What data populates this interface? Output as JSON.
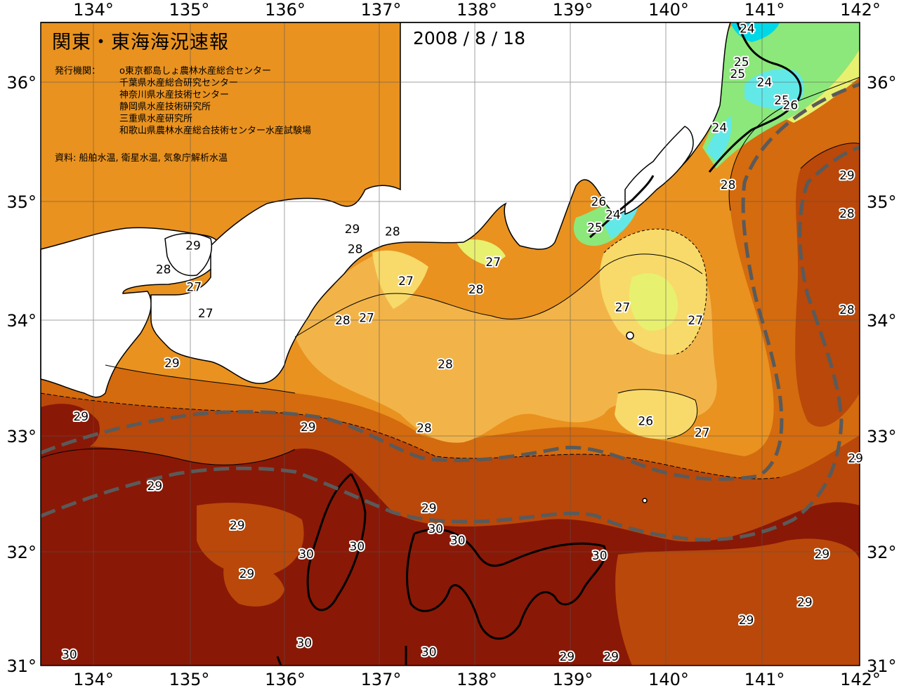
{
  "header": {
    "title": "関東・東海海況速報",
    "date": "2008 / 8 / 18",
    "issuer_label": "発行機関：",
    "issuers": [
      "o東京都島しょ農林水産総合センター",
      "千葉県水産総合研究センター",
      "神奈川県水産技術センター",
      "静岡県水産技術研究所",
      "三重県水産研究所",
      "和歌山県農林水産総合技術センター水産試験場"
    ],
    "source": "資料: 船舶水温, 衛星水温, 気象庁解析水温"
  },
  "axes": {
    "lon_labels": [
      "134°",
      "135°",
      "136°",
      "137°",
      "138°",
      "139°",
      "140°",
      "141°",
      "142°"
    ],
    "lat_labels": [
      "36°",
      "35°",
      "34°",
      "33°",
      "32°",
      "31°"
    ]
  },
  "colors": {
    "t23": "#00d8e8",
    "t24": "#63e8e8",
    "t25": "#8ce87a",
    "t26": "#e8f070",
    "t27": "#f7da6a",
    "t27b": "#f2b449",
    "t28": "#e9921f",
    "t28b": "#d46b0e",
    "t29": "#b9480a",
    "t30": "#8a1806",
    "land": "#ffffff",
    "current_axis": "#5a5a5a"
  },
  "contour_labels": [
    {
      "text": "24",
      "lon": 140.82,
      "lat": 36.45
    },
    {
      "text": "25",
      "lon": 140.76,
      "lat": 36.17
    },
    {
      "text": "25",
      "lon": 140.72,
      "lat": 36.07
    },
    {
      "text": "24",
      "lon": 141.0,
      "lat": 36.0
    },
    {
      "text": "25",
      "lon": 141.18,
      "lat": 35.85
    },
    {
      "text": "26",
      "lon": 141.27,
      "lat": 35.81
    },
    {
      "text": "24",
      "lon": 140.53,
      "lat": 35.62
    },
    {
      "text": "29",
      "lon": 141.86,
      "lat": 35.22
    },
    {
      "text": "28",
      "lon": 140.62,
      "lat": 35.14
    },
    {
      "text": "28",
      "lon": 141.86,
      "lat": 34.9
    },
    {
      "text": "26",
      "lon": 139.27,
      "lat": 35.0
    },
    {
      "text": "24",
      "lon": 139.42,
      "lat": 34.89
    },
    {
      "text": "25",
      "lon": 139.23,
      "lat": 34.78
    },
    {
      "text": "29",
      "lon": 136.7,
      "lat": 34.77
    },
    {
      "text": "28",
      "lon": 137.12,
      "lat": 34.75
    },
    {
      "text": "28",
      "lon": 136.73,
      "lat": 34.6
    },
    {
      "text": "29",
      "lon": 135.04,
      "lat": 34.63
    },
    {
      "text": "28",
      "lon": 134.73,
      "lat": 34.43
    },
    {
      "text": "27",
      "lon": 138.17,
      "lat": 34.49
    },
    {
      "text": "27",
      "lon": 135.05,
      "lat": 34.28
    },
    {
      "text": "27",
      "lon": 137.26,
      "lat": 34.33
    },
    {
      "text": "28",
      "lon": 137.99,
      "lat": 34.26
    },
    {
      "text": "27",
      "lon": 139.52,
      "lat": 34.11
    },
    {
      "text": "27",
      "lon": 135.17,
      "lat": 34.06
    },
    {
      "text": "28",
      "lon": 136.6,
      "lat": 34.0
    },
    {
      "text": "27",
      "lon": 136.85,
      "lat": 34.02
    },
    {
      "text": "27",
      "lon": 140.28,
      "lat": 34.0
    },
    {
      "text": "28",
      "lon": 141.86,
      "lat": 34.09
    },
    {
      "text": "29",
      "lon": 134.82,
      "lat": 33.63
    },
    {
      "text": "28",
      "lon": 137.67,
      "lat": 33.62
    },
    {
      "text": "29",
      "lon": 133.87,
      "lat": 33.17
    },
    {
      "text": "29",
      "lon": 136.24,
      "lat": 33.08
    },
    {
      "text": "28",
      "lon": 137.45,
      "lat": 33.07
    },
    {
      "text": "26",
      "lon": 139.76,
      "lat": 33.13
    },
    {
      "text": "27",
      "lon": 140.35,
      "lat": 33.03
    },
    {
      "text": "29",
      "lon": 141.95,
      "lat": 32.81
    },
    {
      "text": "29",
      "lon": 134.64,
      "lat": 32.57
    },
    {
      "text": "29",
      "lon": 137.5,
      "lat": 32.38
    },
    {
      "text": "30",
      "lon": 137.57,
      "lat": 32.2
    },
    {
      "text": "29",
      "lon": 135.5,
      "lat": 32.23
    },
    {
      "text": "30",
      "lon": 137.8,
      "lat": 32.1
    },
    {
      "text": "30",
      "lon": 136.75,
      "lat": 32.05
    },
    {
      "text": "30",
      "lon": 136.22,
      "lat": 31.98
    },
    {
      "text": "30",
      "lon": 139.28,
      "lat": 31.97
    },
    {
      "text": "29",
      "lon": 141.6,
      "lat": 31.98
    },
    {
      "text": "29",
      "lon": 135.6,
      "lat": 31.81
    },
    {
      "text": "29",
      "lon": 141.42,
      "lat": 31.56
    },
    {
      "text": "29",
      "lon": 140.81,
      "lat": 31.4
    },
    {
      "text": "30",
      "lon": 136.2,
      "lat": 31.2
    },
    {
      "text": "30",
      "lon": 133.75,
      "lat": 31.1
    },
    {
      "text": "30",
      "lon": 137.5,
      "lat": 31.12
    },
    {
      "text": "29",
      "lon": 138.94,
      "lat": 31.08
    },
    {
      "text": "29",
      "lon": 139.4,
      "lat": 31.08
    }
  ]
}
